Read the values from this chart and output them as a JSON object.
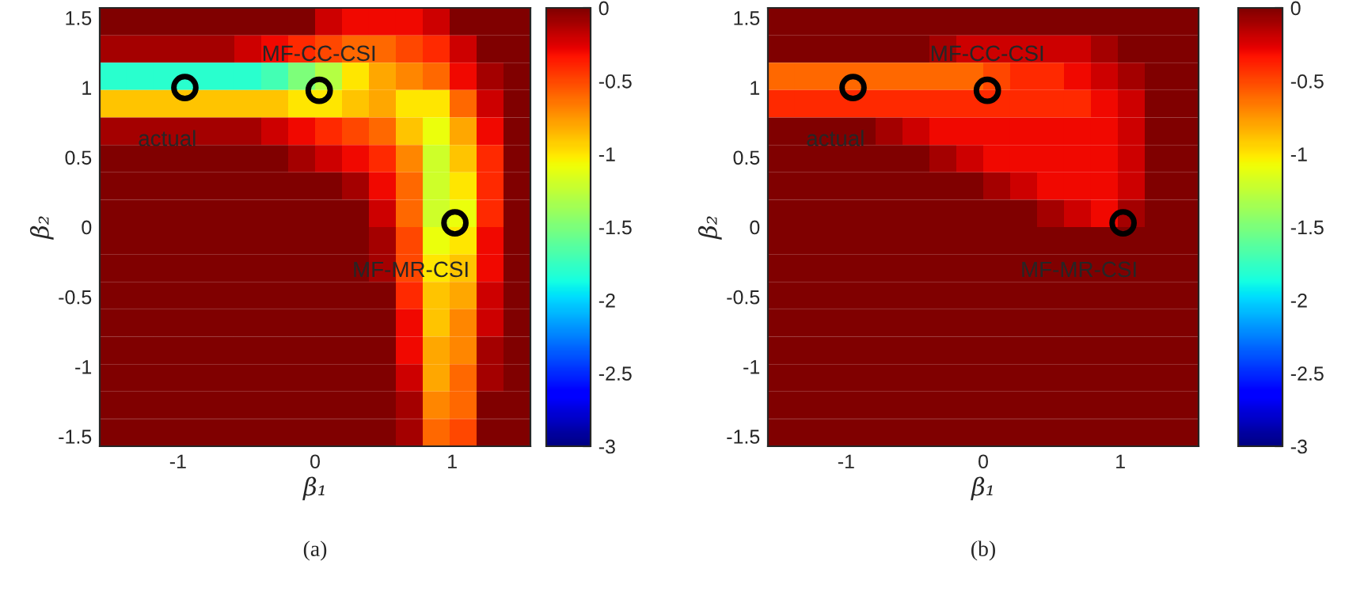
{
  "chart_data": [
    {
      "type": "heatmap",
      "xlabel": "β₁",
      "ylabel": "β₂",
      "xlim": [
        -1.5708,
        1.5708
      ],
      "ylim": [
        -1.5708,
        1.5708
      ],
      "xticks": [
        -1,
        0,
        1
      ],
      "yticks": [
        -1.5,
        -1,
        -0.5,
        0,
        0.5,
        1,
        1.5
      ],
      "clim": [
        -3,
        0
      ],
      "cticks": [
        -3,
        -2.5,
        -2,
        -1.5,
        -1,
        -0.5,
        0
      ],
      "annotations": [
        {
          "text": "actual",
          "x": -0.95,
          "y": 1
        },
        {
          "text": "MF-CC-CSI",
          "x": 0.03,
          "y": 0.98
        },
        {
          "text": "MF-MR-CSI",
          "x": 1.02,
          "y": 0.03
        },
        "(a)"
      ],
      "cells": [
        [
          0,
          0,
          0,
          0,
          0,
          0,
          0,
          0,
          -0.2,
          -0.3,
          -0.3,
          -0.3,
          -0.2,
          0,
          0,
          0
        ],
        [
          -0.1,
          -0.1,
          -0.1,
          -0.1,
          -0.1,
          -0.2,
          -0.3,
          -0.4,
          -0.5,
          -0.6,
          -0.6,
          -0.5,
          -0.4,
          -0.2,
          0,
          0
        ],
        [
          -1.8,
          -1.8,
          -1.8,
          -1.8,
          -1.8,
          -1.8,
          -1.7,
          -1.5,
          -1.3,
          -1.0,
          -0.8,
          -0.7,
          -0.6,
          -0.3,
          -0.1,
          0
        ],
        [
          -0.9,
          -0.9,
          -0.9,
          -0.9,
          -0.9,
          -0.9,
          -0.9,
          -1.0,
          -1.0,
          -0.9,
          -0.8,
          -1.0,
          -1.0,
          -0.6,
          -0.2,
          0
        ],
        [
          -0.1,
          -0.1,
          -0.1,
          -0.1,
          -0.1,
          -0.1,
          -0.2,
          -0.3,
          -0.4,
          -0.5,
          -0.6,
          -0.9,
          -1.1,
          -0.8,
          -0.3,
          0
        ],
        [
          0,
          0,
          0,
          0,
          0,
          0,
          0,
          -0.1,
          -0.2,
          -0.3,
          -0.4,
          -0.7,
          -1.2,
          -0.9,
          -0.4,
          0
        ],
        [
          0,
          0,
          0,
          0,
          0,
          0,
          0,
          0,
          0,
          -0.1,
          -0.3,
          -0.6,
          -1.2,
          -1.0,
          -0.4,
          0
        ],
        [
          0,
          0,
          0,
          0,
          0,
          0,
          0,
          0,
          0,
          0,
          -0.2,
          -0.6,
          -1.2,
          -1.1,
          -0.4,
          0
        ],
        [
          0,
          0,
          0,
          0,
          0,
          0,
          0,
          0,
          0,
          0,
          -0.1,
          -0.5,
          -1.1,
          -1.0,
          -0.3,
          0
        ],
        [
          0,
          0,
          0,
          0,
          0,
          0,
          0,
          0,
          0,
          0,
          -0.1,
          -0.5,
          -1.0,
          -0.9,
          -0.3,
          0
        ],
        [
          0,
          0,
          0,
          0,
          0,
          0,
          0,
          0,
          0,
          0,
          0,
          -0.4,
          -0.9,
          -0.8,
          -0.2,
          0
        ],
        [
          0,
          0,
          0,
          0,
          0,
          0,
          0,
          0,
          0,
          0,
          0,
          -0.3,
          -0.9,
          -0.7,
          -0.2,
          0
        ],
        [
          0,
          0,
          0,
          0,
          0,
          0,
          0,
          0,
          0,
          0,
          0,
          -0.3,
          -0.8,
          -0.7,
          -0.1,
          0
        ],
        [
          0,
          0,
          0,
          0,
          0,
          0,
          0,
          0,
          0,
          0,
          0,
          -0.2,
          -0.8,
          -0.6,
          -0.1,
          0
        ],
        [
          0,
          0,
          0,
          0,
          0,
          0,
          0,
          0,
          0,
          0,
          0,
          -0.1,
          -0.7,
          -0.6,
          0,
          0
        ],
        [
          0,
          0,
          0,
          0,
          0,
          0,
          0,
          0,
          0,
          0,
          0,
          -0.1,
          -0.6,
          -0.5,
          0,
          0
        ]
      ]
    },
    {
      "type": "heatmap",
      "xlabel": "β₁",
      "ylabel": "β₂",
      "xlim": [
        -1.5708,
        1.5708
      ],
      "ylim": [
        -1.5708,
        1.5708
      ],
      "xticks": [
        -1,
        0,
        1
      ],
      "yticks": [
        -1.5,
        -1,
        -0.5,
        0,
        0.5,
        1,
        1.5
      ],
      "clim": [
        -3,
        0
      ],
      "cticks": [
        -3,
        -2.5,
        -2,
        -1.5,
        -1,
        -0.5,
        0
      ],
      "annotations": [
        {
          "text": "actual",
          "x": -0.95,
          "y": 1
        },
        {
          "text": "MF-CC-CSI",
          "x": 0.03,
          "y": 0.98
        },
        {
          "text": "MF-MR-CSI",
          "x": 1.02,
          "y": 0.03
        },
        "(b)"
      ],
      "cells": [
        [
          0,
          0,
          0,
          0,
          0,
          0,
          0,
          0,
          0,
          0,
          0,
          0,
          0,
          0,
          0,
          0
        ],
        [
          0,
          0,
          0,
          0,
          0,
          0,
          -0.1,
          -0.2,
          -0.2,
          -0.2,
          -0.2,
          -0.2,
          -0.1,
          0,
          0,
          0
        ],
        [
          -0.6,
          -0.6,
          -0.6,
          -0.6,
          -0.6,
          -0.6,
          -0.6,
          -0.6,
          -0.5,
          -0.4,
          -0.4,
          -0.3,
          -0.2,
          -0.1,
          0,
          0
        ],
        [
          -0.4,
          -0.4,
          -0.4,
          -0.4,
          -0.4,
          -0.4,
          -0.4,
          -0.4,
          -0.4,
          -0.4,
          -0.4,
          -0.4,
          -0.3,
          -0.2,
          0,
          0
        ],
        [
          0,
          0,
          0,
          0,
          -0.1,
          -0.2,
          -0.3,
          -0.3,
          -0.3,
          -0.3,
          -0.3,
          -0.3,
          -0.3,
          -0.2,
          0,
          0
        ],
        [
          0,
          0,
          0,
          0,
          0,
          0,
          -0.1,
          -0.2,
          -0.3,
          -0.3,
          -0.3,
          -0.3,
          -0.3,
          -0.2,
          0,
          0
        ],
        [
          0,
          0,
          0,
          0,
          0,
          0,
          0,
          0,
          -0.1,
          -0.2,
          -0.3,
          -0.3,
          -0.3,
          -0.2,
          0,
          0
        ],
        [
          0,
          0,
          0,
          0,
          0,
          0,
          0,
          0,
          0,
          0,
          -0.1,
          -0.2,
          -0.3,
          -0.1,
          0,
          0
        ],
        [
          0,
          0,
          0,
          0,
          0,
          0,
          0,
          0,
          0,
          0,
          0,
          0,
          0,
          0,
          0,
          0
        ],
        [
          0,
          0,
          0,
          0,
          0,
          0,
          0,
          0,
          0,
          0,
          0,
          0,
          0,
          0,
          0,
          0
        ],
        [
          0,
          0,
          0,
          0,
          0,
          0,
          0,
          0,
          0,
          0,
          0,
          0,
          0,
          0,
          0,
          0
        ],
        [
          0,
          0,
          0,
          0,
          0,
          0,
          0,
          0,
          0,
          0,
          0,
          0,
          0,
          0,
          0,
          0
        ],
        [
          0,
          0,
          0,
          0,
          0,
          0,
          0,
          0,
          0,
          0,
          0,
          0,
          0,
          0,
          0,
          0
        ],
        [
          0,
          0,
          0,
          0,
          0,
          0,
          0,
          0,
          0,
          0,
          0,
          0,
          0,
          0,
          0,
          0
        ],
        [
          0,
          0,
          0,
          0,
          0,
          0,
          0,
          0,
          0,
          0,
          0,
          0,
          0,
          0,
          0,
          0
        ],
        [
          0,
          0,
          0,
          0,
          0,
          0,
          0,
          0,
          0,
          0,
          0,
          0,
          0,
          0,
          0,
          0
        ]
      ]
    }
  ]
}
